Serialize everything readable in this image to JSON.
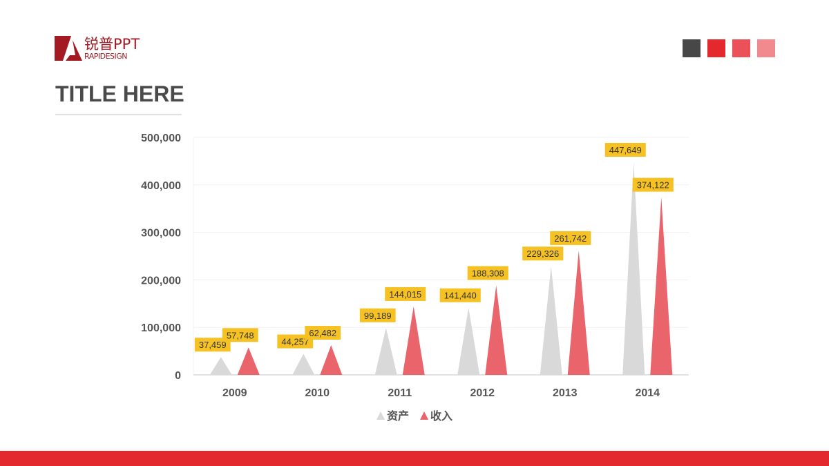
{
  "logo": {
    "cn": "锐普PPT",
    "en": "RAPIDESIGN"
  },
  "title": "TITLE HERE",
  "swatches": [
    "#474747",
    "#e3282e",
    "#ea5158",
    "#f08a8e"
  ],
  "colors": {
    "asset": "#d9d9d9",
    "income": "#e9646b",
    "label_bg": "#f6c223",
    "bottom_bar": "#e3282e"
  },
  "chart_data": {
    "type": "bar",
    "mark": "triangle",
    "categories": [
      "2009",
      "2010",
      "2011",
      "2012",
      "2013",
      "2014"
    ],
    "series": [
      {
        "name": "资产",
        "values": [
          37459,
          44257,
          99189,
          141440,
          229326,
          447649
        ],
        "labels": [
          "37,459",
          "44,257",
          "99,189",
          "141,440",
          "229,326",
          "447,649"
        ]
      },
      {
        "name": "收入",
        "values": [
          57748,
          62482,
          144015,
          188308,
          261742,
          374122
        ],
        "labels": [
          "57,748",
          "62,482",
          "144,015",
          "188,308",
          "261,742",
          "374,122"
        ]
      }
    ],
    "yticks": [
      "0",
      "100,000",
      "200,000",
      "300,000",
      "400,000",
      "500,000"
    ],
    "ylim": [
      0,
      500000
    ],
    "grid": true,
    "legend": "bottom"
  }
}
